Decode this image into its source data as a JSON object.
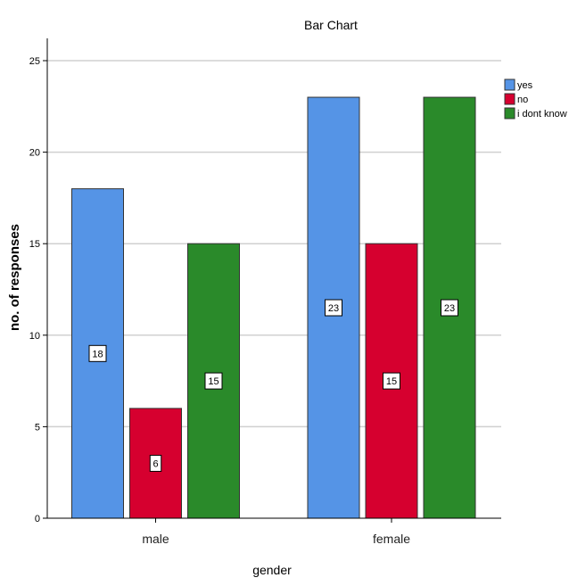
{
  "chart_data": {
    "type": "bar",
    "title": "Bar Chart",
    "xlabel": "gender",
    "ylabel": "no. of responses",
    "categories": [
      "male",
      "female"
    ],
    "series": [
      {
        "name": "yes",
        "values": [
          18,
          23
        ],
        "color": "#5594e6"
      },
      {
        "name": "no",
        "values": [
          6,
          15
        ],
        "color": "#d6002f"
      },
      {
        "name": "i dont know",
        "values": [
          15,
          23
        ],
        "color": "#2a8a2a"
      }
    ],
    "ylim": [
      0,
      25
    ],
    "yticks": [
      0,
      5,
      10,
      15,
      20,
      25
    ],
    "grid": true,
    "legend_position": "top-right",
    "data_labels": true
  }
}
